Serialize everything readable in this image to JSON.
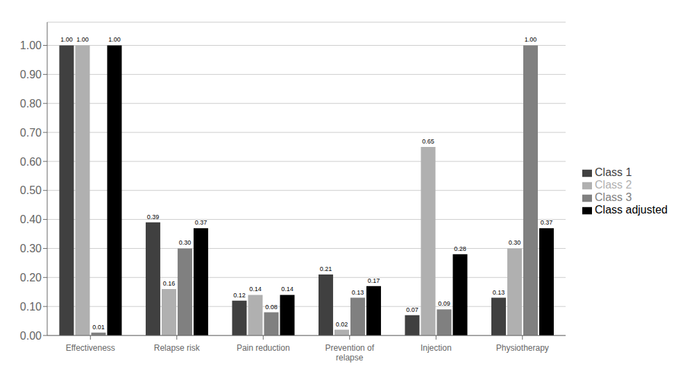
{
  "chart_data": {
    "type": "bar",
    "categories": [
      "Effectiveness",
      "Relapse risk",
      "Pain reduction",
      "Prevention of\nrelapse",
      "Injection",
      "Physiotherapy"
    ],
    "series": [
      {
        "name": "Class 1",
        "color": "#404040",
        "values": [
          1.0,
          0.39,
          0.12,
          0.21,
          0.07,
          0.13
        ],
        "value_labels": [
          "1.00",
          "0.39",
          "0.12",
          "0.21",
          "0.07",
          "0.13"
        ]
      },
      {
        "name": "Class 2",
        "color": "#b0b0b0",
        "values": [
          1.0,
          0.16,
          0.14,
          0.02,
          0.65,
          0.3
        ],
        "value_labels": [
          "1.00",
          "0.16",
          "0.14",
          "0.02",
          "0.65",
          "0.30"
        ]
      },
      {
        "name": "Class 3",
        "color": "#808080",
        "values": [
          0.01,
          0.3,
          0.08,
          0.13,
          0.09,
          1.0
        ],
        "value_labels": [
          "0.01",
          "0.30",
          "0.08",
          "0.13",
          "0.09",
          "1.00"
        ]
      },
      {
        "name": "Class adjusted",
        "color": "#000000",
        "values": [
          1.0,
          0.37,
          0.14,
          0.17,
          0.28,
          0.37
        ],
        "value_labels": [
          "1.00",
          "0.37",
          "0.14",
          "0.17",
          "0.28",
          "0.37"
        ]
      }
    ],
    "ylim": [
      0.0,
      1.08
    ],
    "yticks": [
      {
        "value": 0.0,
        "label": "0.00"
      },
      {
        "value": 0.1,
        "label": "0.10"
      },
      {
        "value": 0.2,
        "label": "0.20"
      },
      {
        "value": 0.3,
        "label": "0.30"
      },
      {
        "value": 0.4,
        "label": "0.40"
      },
      {
        "value": 0.5,
        "label": "0.50"
      },
      {
        "value": 0.6,
        "label": "0.60"
      },
      {
        "value": 0.7,
        "label": "0.70"
      },
      {
        "value": 0.8,
        "label": "0.80"
      },
      {
        "value": 0.9,
        "label": "0.90"
      },
      {
        "value": 1.0,
        "label": "1.00"
      }
    ],
    "grid": true,
    "legend": "right",
    "data_labels": true
  }
}
